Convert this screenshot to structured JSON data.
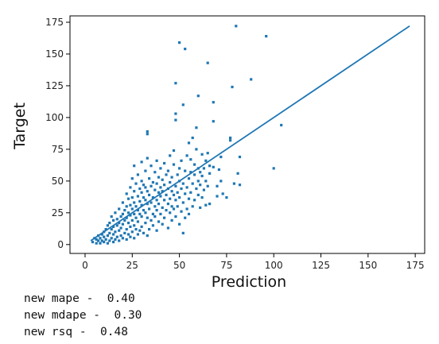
{
  "chart_data": {
    "type": "scatter",
    "title": "",
    "xlabel": "Prediction",
    "ylabel": "Target",
    "xlim": [
      -8,
      180
    ],
    "ylim": [
      -7,
      180
    ],
    "x_ticks": [
      0,
      25,
      50,
      75,
      100,
      125,
      150,
      175
    ],
    "y_ticks": [
      0,
      25,
      50,
      75,
      100,
      125,
      150,
      175
    ],
    "grid": false,
    "point_color": "#1f77b4",
    "line_color": "#1f77b4",
    "reference_line": {
      "x": [
        3,
        172
      ],
      "y": [
        3,
        172
      ]
    },
    "points": [
      [
        4,
        2
      ],
      [
        5,
        5
      ],
      [
        6,
        1
      ],
      [
        6,
        4
      ],
      [
        7,
        7
      ],
      [
        7,
        3
      ],
      [
        8,
        1
      ],
      [
        8,
        5
      ],
      [
        9,
        3
      ],
      [
        9,
        8
      ],
      [
        10,
        2
      ],
      [
        10,
        6
      ],
      [
        10,
        10
      ],
      [
        11,
        4
      ],
      [
        11,
        12
      ],
      [
        12,
        1
      ],
      [
        12,
        7
      ],
      [
        12,
        15
      ],
      [
        13,
        3
      ],
      [
        13,
        9
      ],
      [
        13,
        17
      ],
      [
        14,
        5
      ],
      [
        14,
        12
      ],
      [
        14,
        22
      ],
      [
        15,
        2
      ],
      [
        15,
        8
      ],
      [
        15,
        14
      ],
      [
        15,
        19
      ],
      [
        16,
        4
      ],
      [
        16,
        10
      ],
      [
        16,
        25
      ],
      [
        17,
        6
      ],
      [
        17,
        15
      ],
      [
        17,
        20
      ],
      [
        18,
        3
      ],
      [
        18,
        11
      ],
      [
        18,
        17
      ],
      [
        18,
        28
      ],
      [
        19,
        7
      ],
      [
        19,
        13
      ],
      [
        19,
        22
      ],
      [
        20,
        5
      ],
      [
        20,
        16
      ],
      [
        20,
        24
      ],
      [
        20,
        33
      ],
      [
        21,
        9
      ],
      [
        21,
        19
      ],
      [
        21,
        27
      ],
      [
        22,
        4
      ],
      [
        22,
        12
      ],
      [
        22,
        21
      ],
      [
        22,
        30
      ],
      [
        22,
        40
      ],
      [
        23,
        8
      ],
      [
        23,
        17
      ],
      [
        23,
        25
      ],
      [
        23,
        36
      ],
      [
        24,
        6
      ],
      [
        24,
        14
      ],
      [
        24,
        23
      ],
      [
        24,
        31
      ],
      [
        24,
        45
      ],
      [
        25,
        10
      ],
      [
        25,
        19
      ],
      [
        25,
        28
      ],
      [
        25,
        37
      ],
      [
        25,
        52
      ],
      [
        26,
        5
      ],
      [
        26,
        15
      ],
      [
        26,
        24
      ],
      [
        26,
        33
      ],
      [
        26,
        42
      ],
      [
        26,
        62
      ],
      [
        27,
        12
      ],
      [
        27,
        21
      ],
      [
        27,
        30
      ],
      [
        27,
        48
      ],
      [
        28,
        8
      ],
      [
        28,
        18
      ],
      [
        28,
        27
      ],
      [
        28,
        38
      ],
      [
        28,
        55
      ],
      [
        29,
        11
      ],
      [
        29,
        24
      ],
      [
        29,
        34
      ],
      [
        29,
        44
      ],
      [
        30,
        14
      ],
      [
        30,
        22
      ],
      [
        30,
        31
      ],
      [
        30,
        41
      ],
      [
        30,
        50
      ],
      [
        30,
        65
      ],
      [
        31,
        9
      ],
      [
        31,
        27
      ],
      [
        31,
        37
      ],
      [
        31,
        47
      ],
      [
        32,
        17
      ],
      [
        32,
        25
      ],
      [
        32,
        35
      ],
      [
        32,
        45
      ],
      [
        32,
        58
      ],
      [
        33,
        7
      ],
      [
        33,
        21
      ],
      [
        33,
        32
      ],
      [
        33,
        42
      ],
      [
        33,
        68
      ],
      [
        33,
        89
      ],
      [
        33,
        87
      ],
      [
        34,
        12
      ],
      [
        34,
        28
      ],
      [
        34,
        39
      ],
      [
        34,
        52
      ],
      [
        35,
        19
      ],
      [
        35,
        33
      ],
      [
        35,
        46
      ],
      [
        35,
        62
      ],
      [
        36,
        15
      ],
      [
        36,
        24
      ],
      [
        36,
        37
      ],
      [
        36,
        49
      ],
      [
        37,
        22
      ],
      [
        37,
        30
      ],
      [
        37,
        43
      ],
      [
        37,
        57
      ],
      [
        38,
        11
      ],
      [
        38,
        27
      ],
      [
        38,
        35
      ],
      [
        38,
        48
      ],
      [
        38,
        66
      ],
      [
        39,
        18
      ],
      [
        39,
        32
      ],
      [
        39,
        41
      ],
      [
        39,
        53
      ],
      [
        40,
        24
      ],
      [
        40,
        38
      ],
      [
        40,
        45
      ],
      [
        40,
        60
      ],
      [
        41,
        16
      ],
      [
        41,
        29
      ],
      [
        41,
        42
      ],
      [
        41,
        51
      ],
      [
        42,
        21
      ],
      [
        42,
        35
      ],
      [
        42,
        47
      ],
      [
        42,
        64
      ],
      [
        43,
        27
      ],
      [
        43,
        39
      ],
      [
        43,
        55
      ],
      [
        44,
        13
      ],
      [
        44,
        32
      ],
      [
        44,
        44
      ],
      [
        44,
        58
      ],
      [
        45,
        25
      ],
      [
        45,
        36
      ],
      [
        45,
        49
      ],
      [
        45,
        70
      ],
      [
        46,
        19
      ],
      [
        46,
        30
      ],
      [
        46,
        42
      ],
      [
        46,
        53
      ],
      [
        47,
        28
      ],
      [
        47,
        39
      ],
      [
        47,
        63
      ],
      [
        47,
        74
      ],
      [
        48,
        22
      ],
      [
        48,
        35
      ],
      [
        48,
        46
      ],
      [
        48,
        127
      ],
      [
        48,
        98
      ],
      [
        48,
        103
      ],
      [
        49,
        30
      ],
      [
        49,
        41
      ],
      [
        49,
        55
      ],
      [
        50,
        16
      ],
      [
        50,
        37
      ],
      [
        50,
        50
      ],
      [
        50,
        60
      ],
      [
        50,
        159
      ],
      [
        51,
        26
      ],
      [
        51,
        44
      ],
      [
        51,
        66
      ],
      [
        52,
        9
      ],
      [
        52,
        33
      ],
      [
        52,
        48
      ],
      [
        52,
        110
      ],
      [
        53,
        21
      ],
      [
        53,
        40
      ],
      [
        53,
        58
      ],
      [
        53,
        154
      ],
      [
        54,
        28
      ],
      [
        54,
        45
      ],
      [
        54,
        70
      ],
      [
        55,
        24
      ],
      [
        55,
        36
      ],
      [
        55,
        52
      ],
      [
        55,
        80
      ],
      [
        56,
        41
      ],
      [
        56,
        57
      ],
      [
        56,
        67
      ],
      [
        57,
        30
      ],
      [
        57,
        48
      ],
      [
        57,
        84
      ],
      [
        58,
        35
      ],
      [
        58,
        55
      ],
      [
        58,
        63
      ],
      [
        59,
        44
      ],
      [
        59,
        75
      ],
      [
        59,
        92
      ],
      [
        60,
        39
      ],
      [
        60,
        50
      ],
      [
        60,
        60
      ],
      [
        60,
        117
      ],
      [
        61,
        29
      ],
      [
        61,
        47
      ],
      [
        61,
        57
      ],
      [
        62,
        37
      ],
      [
        62,
        54
      ],
      [
        62,
        71
      ],
      [
        63,
        43
      ],
      [
        63,
        60
      ],
      [
        64,
        31
      ],
      [
        64,
        50
      ],
      [
        64,
        66
      ],
      [
        65,
        143
      ],
      [
        65,
        46
      ],
      [
        65,
        72
      ],
      [
        66,
        32
      ],
      [
        66,
        56
      ],
      [
        66,
        62
      ],
      [
        68,
        61
      ],
      [
        68,
        97
      ],
      [
        68,
        112
      ],
      [
        70,
        38
      ],
      [
        70,
        46
      ],
      [
        71,
        59
      ],
      [
        72,
        50
      ],
      [
        72,
        69
      ],
      [
        73,
        40
      ],
      [
        75,
        37
      ],
      [
        77,
        84
      ],
      [
        77,
        82
      ],
      [
        78,
        124
      ],
      [
        79,
        48
      ],
      [
        80,
        172
      ],
      [
        81,
        56
      ],
      [
        82,
        69
      ],
      [
        82,
        47
      ],
      [
        88,
        130
      ],
      [
        96,
        164
      ],
      [
        100,
        60
      ],
      [
        104,
        94
      ]
    ]
  },
  "console": {
    "lines": [
      "new mape -  0.40",
      "new mdape -  0.30",
      "new rsq -  0.48"
    ]
  }
}
